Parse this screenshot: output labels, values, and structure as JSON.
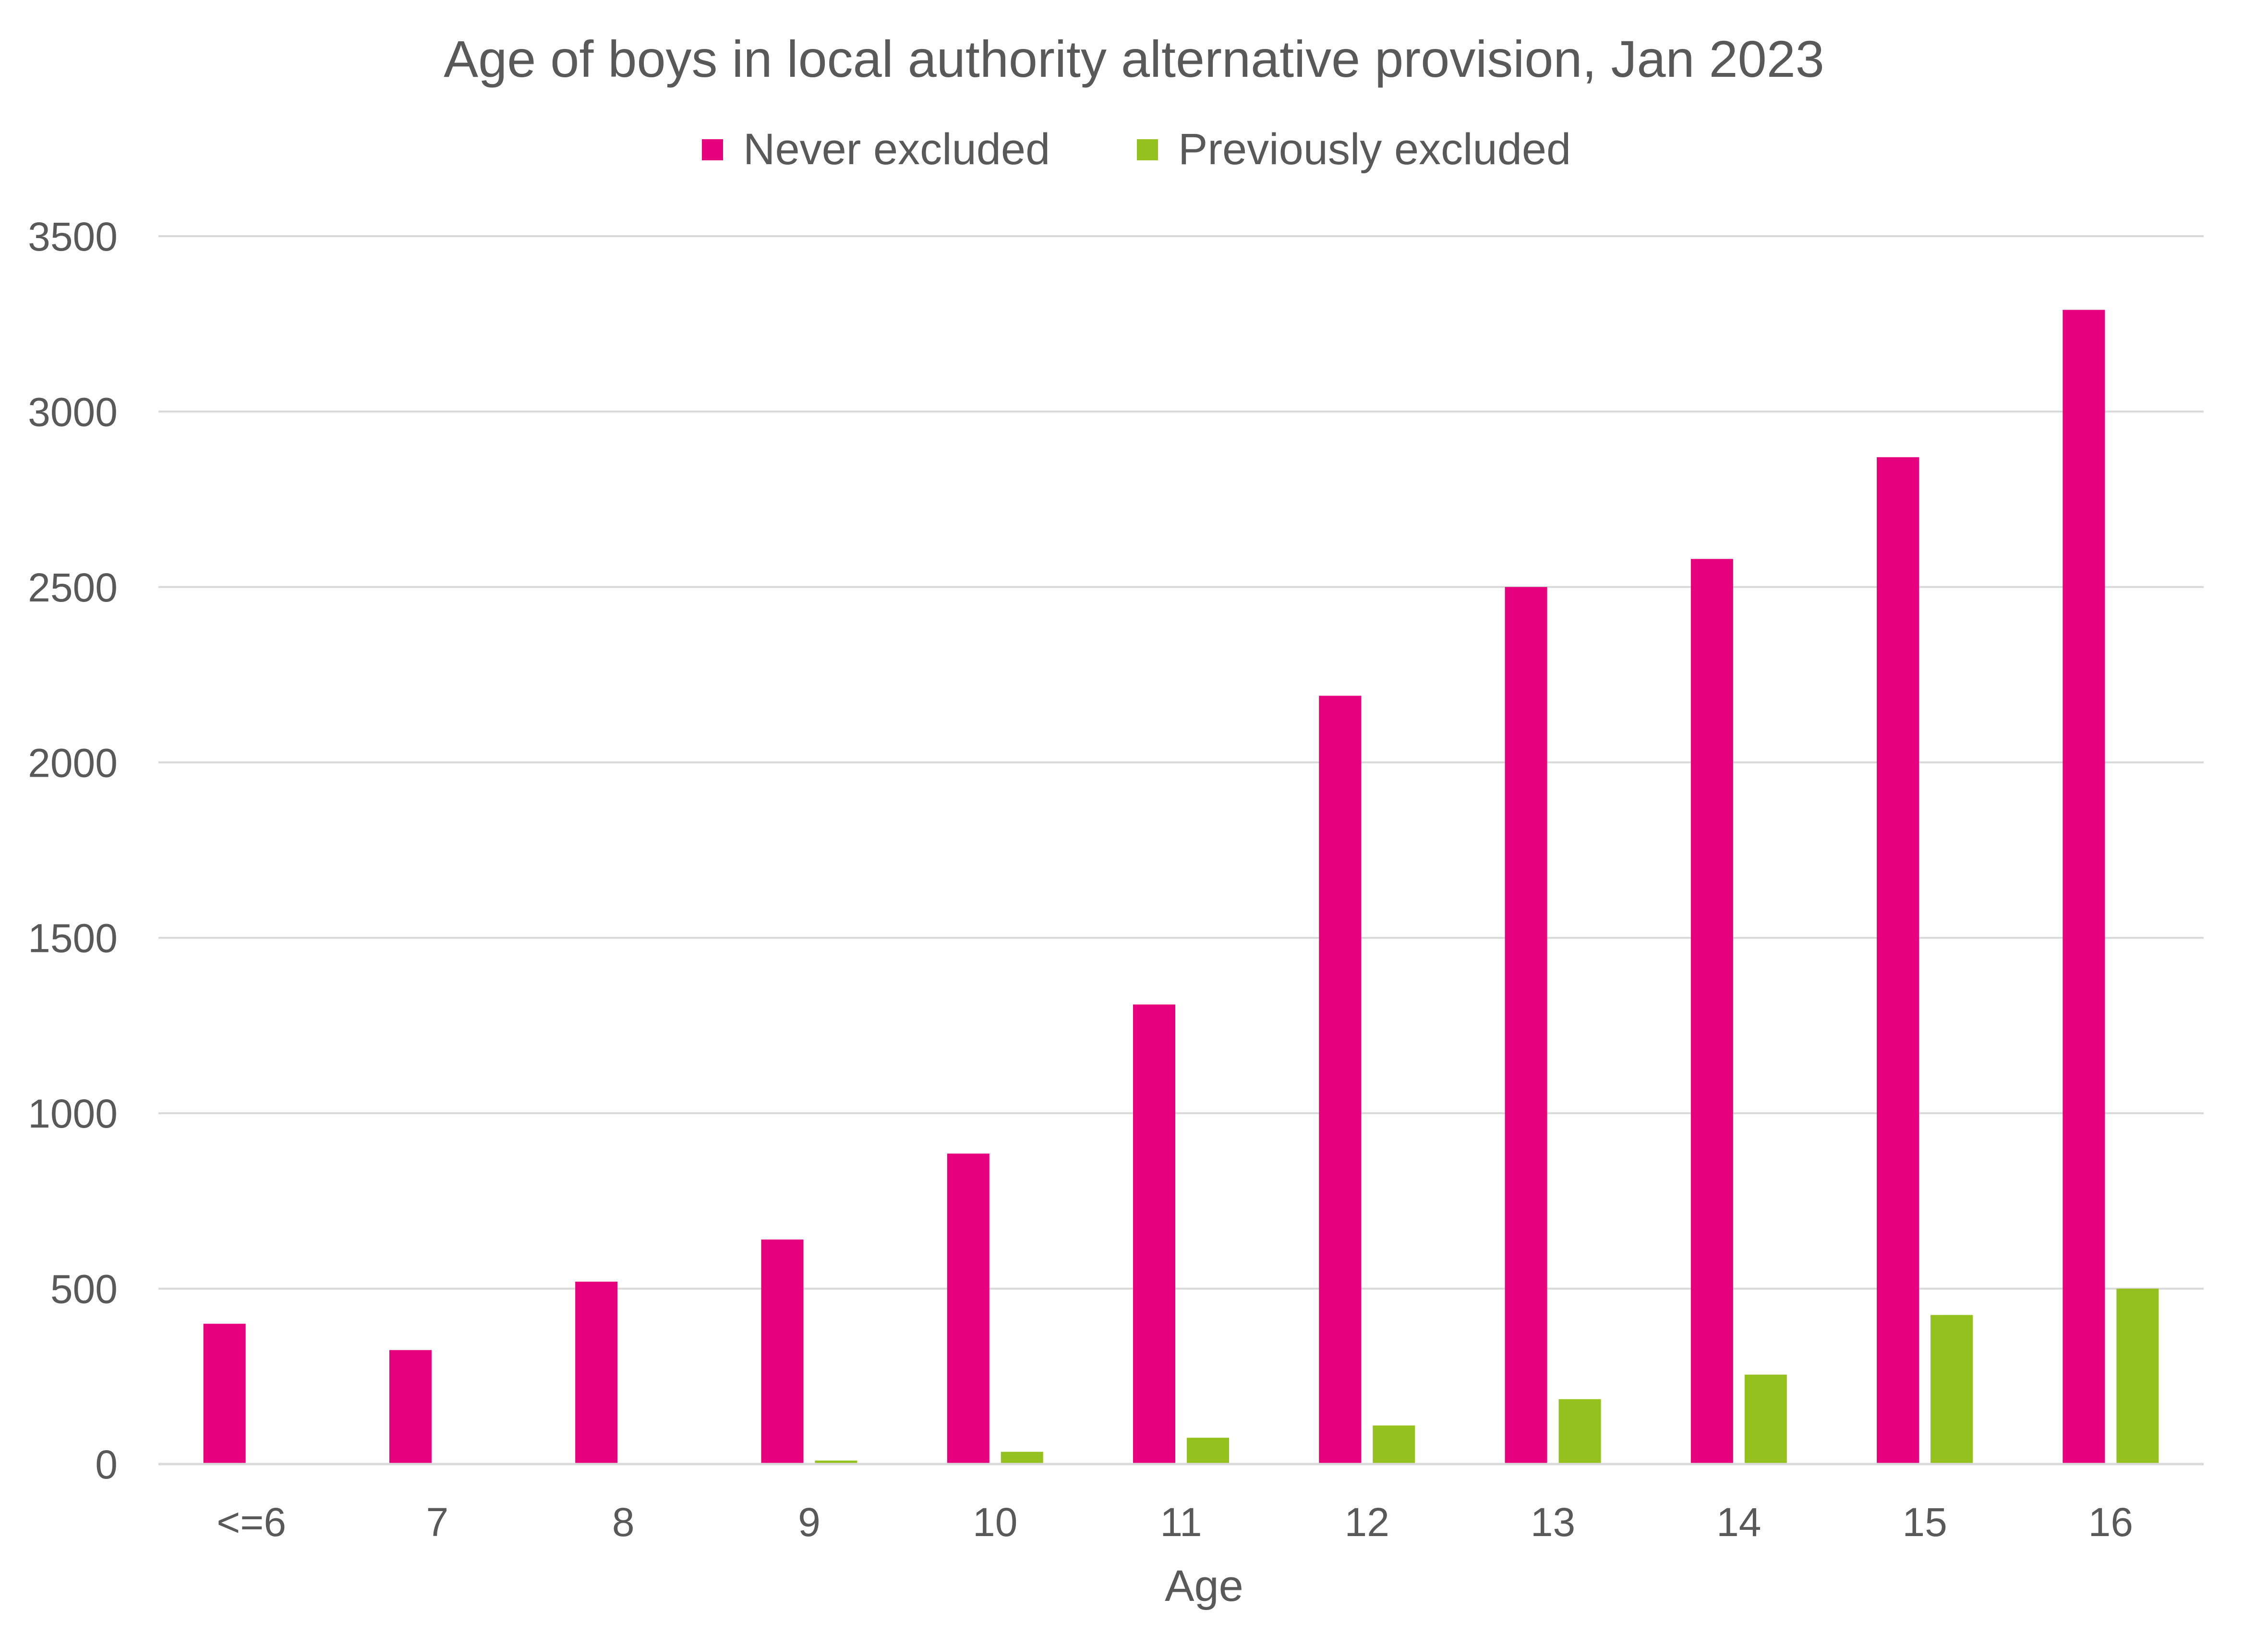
{
  "chart_data": {
    "type": "bar",
    "title": "Age of boys in local authority alternative provision, Jan 2023",
    "xlabel": "Age",
    "ylabel": "",
    "categories": [
      "<=6",
      "7",
      "8",
      "9",
      "10",
      "11",
      "12",
      "13",
      "14",
      "15",
      "16"
    ],
    "series": [
      {
        "name": "Never excluded",
        "color": "#e6007e",
        "values": [
          400,
          325,
          520,
          640,
          885,
          1310,
          2190,
          2500,
          2580,
          2870,
          3290
        ]
      },
      {
        "name": "Previously excluded",
        "color": "#95c11f",
        "values": [
          0,
          0,
          0,
          10,
          35,
          75,
          110,
          185,
          255,
          425,
          500
        ]
      }
    ],
    "ylim": [
      0,
      3500
    ],
    "yticks": [
      0,
      500,
      1000,
      1500,
      2000,
      2500,
      3000,
      3500
    ],
    "grid": true,
    "legend_position": "top-center"
  }
}
